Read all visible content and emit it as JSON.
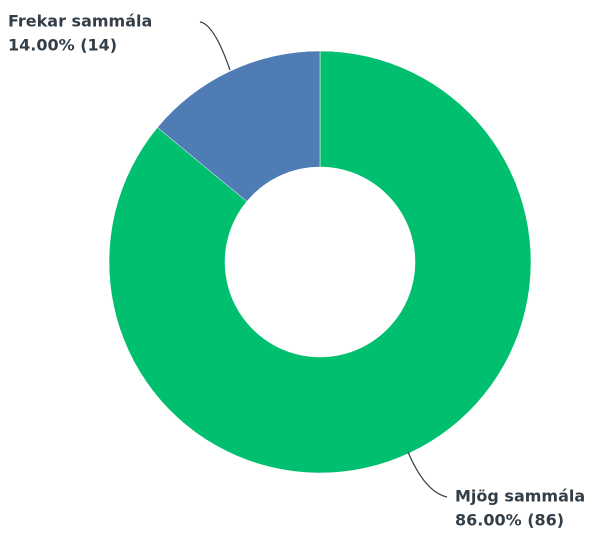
{
  "chart_data": {
    "type": "donut",
    "categories": [
      "Mjög sammála",
      "Frekar sammála"
    ],
    "values": [
      86,
      14
    ],
    "value_labels": [
      "86.00% (86)",
      "14.00% (14)"
    ],
    "colors": [
      "#00bf6f",
      "#507cb6"
    ]
  }
}
